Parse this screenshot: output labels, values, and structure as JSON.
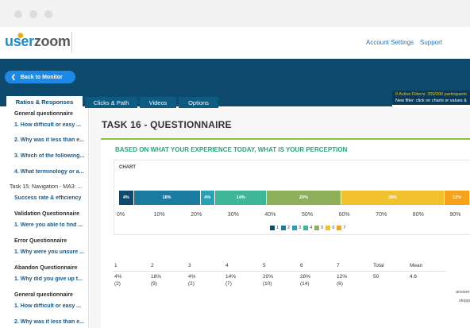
{
  "header": {
    "logo_user": "user",
    "logo_zoom": "zoom",
    "account_settings": "Account Settings",
    "support": "Support"
  },
  "toolbar": {
    "back_label": "Back to Monitor",
    "filter_line1": "0 Active Filter/s: 200/200 participants",
    "filter_line2": "New filter: click on charts or values &"
  },
  "tabs": [
    {
      "label": "Ratios & Responses"
    },
    {
      "label": "Clicks & Path"
    },
    {
      "label": "Videos"
    },
    {
      "label": "Options"
    }
  ],
  "sidebar": {
    "items": [
      {
        "text": "General questionnaire"
      },
      {
        "text": "1. How difficult or easy ..."
      },
      {
        "text": "2. Why was it less than e..."
      },
      {
        "text": "3. Which of the following..."
      },
      {
        "text": "4. What terminology or a..."
      },
      {
        "text": "Task 15: Navigation - MA3: ..."
      },
      {
        "text": "Success rate & efficiency"
      },
      {
        "text": "Validation Questionnaire"
      },
      {
        "text": "1. Were you able to find ..."
      },
      {
        "text": "Error Questionnaire"
      },
      {
        "text": "1. Why were you unsure ..."
      },
      {
        "text": "Abandon Questionnaire"
      },
      {
        "text": "1. Why did you give up t..."
      },
      {
        "text": "General questionnaire"
      },
      {
        "text": "1. How difficult or easy ..."
      },
      {
        "text": "2. Why was it less than e..."
      }
    ]
  },
  "main": {
    "task_title": "TASK 16 - QUESTIONNAIRE",
    "question_title": "BASED ON WHAT YOUR EXPERIENCE TODAY, WHAT IS YOUR PERCEPTION",
    "chart_label": "CHART"
  },
  "colors": {
    "s1": "#0e4a6e",
    "s2": "#1a7aa0",
    "s3": "#2aa0b8",
    "s4": "#3fb59a",
    "s5": "#8fb05a",
    "s6": "#f2c12e",
    "s7": "#f5a21c"
  },
  "chart_data": {
    "type": "bar",
    "stacked": true,
    "orientation": "horizontal",
    "categories": [
      "1",
      "2",
      "3",
      "4",
      "5",
      "6",
      "7"
    ],
    "values": [
      4,
      18,
      4,
      14,
      20,
      28,
      12
    ],
    "data_labels": [
      "4%",
      "18%",
      "4%",
      "14%",
      "20%",
      "28%",
      "12%"
    ],
    "x_ticks": [
      "0%",
      "10%",
      "20%",
      "30%",
      "40%",
      "50%",
      "60%",
      "70%",
      "80%",
      "90%"
    ],
    "xlim": [
      0,
      100
    ],
    "legend": "bottom"
  },
  "table": {
    "headers": [
      "1",
      "2",
      "3",
      "4",
      "5",
      "6",
      "7",
      "Total",
      "Mean"
    ],
    "percents": [
      "4%",
      "18%",
      "4%",
      "14%",
      "20%",
      "28%",
      "12%",
      "50",
      "4.6"
    ],
    "counts": [
      "(2)",
      "(9)",
      "(2)",
      "(7)",
      "(10)",
      "(14)",
      "(6)"
    ],
    "side_notes": [
      "answere",
      "skippe"
    ]
  }
}
